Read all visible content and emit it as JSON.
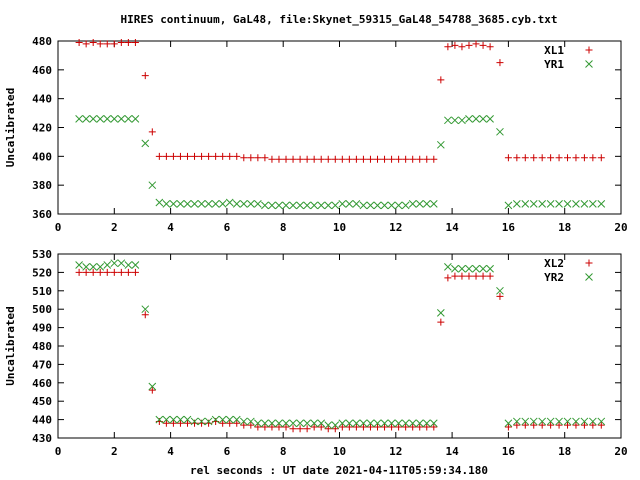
{
  "figure": {
    "title": "HIRES continuum, GaL48, file:Skynet_59315_GaL48_54788_3685.cyb.txt",
    "xlabel": "rel seconds : UT date 2021-04-11T05:59:34.180"
  },
  "chart_data": [
    {
      "type": "scatter",
      "title": "",
      "xlabel": "",
      "ylabel": "Uncalibrated",
      "xlim": [
        0,
        20
      ],
      "ylim": [
        360,
        480
      ],
      "xticks": [
        0,
        2,
        4,
        6,
        8,
        10,
        12,
        14,
        16,
        18,
        20
      ],
      "yticks": [
        360,
        380,
        400,
        420,
        440,
        460,
        480
      ],
      "grid": false,
      "legend_position": "top-right",
      "series": [
        {
          "name": "XL1",
          "marker": "plus",
          "color": "#cc0000",
          "x": [
            0.75,
            1.0,
            1.25,
            1.5,
            1.75,
            2.0,
            2.25,
            2.5,
            2.75,
            3.1,
            3.35,
            3.6,
            3.85,
            4.1,
            4.35,
            4.6,
            4.85,
            5.1,
            5.35,
            5.6,
            5.85,
            6.1,
            6.35,
            6.6,
            6.85,
            7.1,
            7.35,
            7.6,
            7.85,
            8.1,
            8.35,
            8.6,
            8.85,
            9.1,
            9.35,
            9.6,
            9.85,
            10.1,
            10.35,
            10.6,
            10.85,
            11.1,
            11.35,
            11.6,
            11.85,
            12.1,
            12.35,
            12.6,
            12.85,
            13.1,
            13.35,
            13.6,
            13.85,
            14.1,
            14.35,
            14.6,
            14.85,
            15.1,
            15.35,
            15.7,
            16.0,
            16.3,
            16.6,
            16.9,
            17.2,
            17.5,
            17.8,
            18.1,
            18.4,
            18.7,
            19.0,
            19.3
          ],
          "y": [
            479,
            478,
            479,
            478,
            478,
            478,
            479,
            479,
            479,
            456,
            417,
            400,
            400,
            400,
            400,
            400,
            400,
            400,
            400,
            400,
            400,
            400,
            400,
            399,
            399,
            399,
            399,
            398,
            398,
            398,
            398,
            398,
            398,
            398,
            398,
            398,
            398,
            398,
            398,
            398,
            398,
            398,
            398,
            398,
            398,
            398,
            398,
            398,
            398,
            398,
            398,
            453,
            476,
            477,
            476,
            477,
            478,
            477,
            476,
            465,
            399,
            399,
            399,
            399,
            399,
            399,
            399,
            399,
            399,
            399,
            399,
            399
          ]
        },
        {
          "name": "YR1",
          "marker": "cross",
          "color": "#339933",
          "x": [
            0.75,
            1.0,
            1.25,
            1.5,
            1.75,
            2.0,
            2.25,
            2.5,
            2.75,
            3.1,
            3.35,
            3.6,
            3.85,
            4.1,
            4.35,
            4.6,
            4.85,
            5.1,
            5.35,
            5.6,
            5.85,
            6.1,
            6.35,
            6.6,
            6.85,
            7.1,
            7.35,
            7.6,
            7.85,
            8.1,
            8.35,
            8.6,
            8.85,
            9.1,
            9.35,
            9.6,
            9.85,
            10.1,
            10.35,
            10.6,
            10.85,
            11.1,
            11.35,
            11.6,
            11.85,
            12.1,
            12.35,
            12.6,
            12.85,
            13.1,
            13.35,
            13.6,
            13.85,
            14.1,
            14.35,
            14.6,
            14.85,
            15.1,
            15.35,
            15.7,
            16.0,
            16.3,
            16.6,
            16.9,
            17.2,
            17.5,
            17.8,
            18.1,
            18.4,
            18.7,
            19.0,
            19.3
          ],
          "y": [
            426,
            426,
            426,
            426,
            426,
            426,
            426,
            426,
            426,
            409,
            380,
            368,
            367,
            367,
            367,
            367,
            367,
            367,
            367,
            367,
            367,
            368,
            367,
            367,
            367,
            367,
            366,
            366,
            366,
            366,
            366,
            366,
            366,
            366,
            366,
            366,
            366,
            367,
            367,
            367,
            366,
            366,
            366,
            366,
            366,
            366,
            366,
            367,
            367,
            367,
            367,
            408,
            425,
            425,
            425,
            426,
            426,
            426,
            426,
            417,
            366,
            367,
            367,
            367,
            367,
            367,
            367,
            367,
            367,
            367,
            367,
            367
          ]
        }
      ]
    },
    {
      "type": "scatter",
      "title": "",
      "xlabel": "rel seconds : UT date 2021-04-11T05:59:34.180",
      "ylabel": "Uncalibrated",
      "xlim": [
        0,
        20
      ],
      "ylim": [
        430,
        530
      ],
      "xticks": [
        0,
        2,
        4,
        6,
        8,
        10,
        12,
        14,
        16,
        18,
        20
      ],
      "yticks": [
        430,
        440,
        450,
        460,
        470,
        480,
        490,
        500,
        510,
        520,
        530
      ],
      "grid": false,
      "legend_position": "top-right",
      "series": [
        {
          "name": "XL2",
          "marker": "plus",
          "color": "#cc0000",
          "x": [
            0.75,
            1.0,
            1.25,
            1.5,
            1.75,
            2.0,
            2.25,
            2.5,
            2.75,
            3.1,
            3.35,
            3.6,
            3.85,
            4.1,
            4.35,
            4.6,
            4.85,
            5.1,
            5.35,
            5.6,
            5.85,
            6.1,
            6.35,
            6.6,
            6.85,
            7.1,
            7.35,
            7.6,
            7.85,
            8.1,
            8.35,
            8.6,
            8.85,
            9.1,
            9.35,
            9.6,
            9.85,
            10.1,
            10.35,
            10.6,
            10.85,
            11.1,
            11.35,
            11.6,
            11.85,
            12.1,
            12.35,
            12.6,
            12.85,
            13.1,
            13.35,
            13.6,
            13.85,
            14.1,
            14.35,
            14.6,
            14.85,
            15.1,
            15.35,
            15.7,
            16.0,
            16.3,
            16.6,
            16.9,
            17.2,
            17.5,
            17.8,
            18.1,
            18.4,
            18.7,
            19.0,
            19.3
          ],
          "y": [
            520,
            520,
            520,
            520,
            520,
            520,
            520,
            520,
            520,
            497,
            456,
            439,
            438,
            438,
            438,
            438,
            438,
            438,
            438,
            439,
            438,
            438,
            438,
            437,
            437,
            436,
            436,
            436,
            436,
            436,
            435,
            435,
            435,
            436,
            436,
            435,
            435,
            436,
            436,
            436,
            436,
            436,
            436,
            436,
            436,
            436,
            436,
            436,
            436,
            436,
            436,
            493,
            517,
            518,
            518,
            518,
            518,
            518,
            518,
            507,
            436,
            437,
            437,
            437,
            437,
            437,
            437,
            437,
            437,
            437,
            437,
            437
          ]
        },
        {
          "name": "YR2",
          "marker": "cross",
          "color": "#339933",
          "x": [
            0.75,
            1.0,
            1.25,
            1.5,
            1.75,
            2.0,
            2.25,
            2.5,
            2.75,
            3.1,
            3.35,
            3.6,
            3.85,
            4.1,
            4.35,
            4.6,
            4.85,
            5.1,
            5.35,
            5.6,
            5.85,
            6.1,
            6.35,
            6.6,
            6.85,
            7.1,
            7.35,
            7.6,
            7.85,
            8.1,
            8.35,
            8.6,
            8.85,
            9.1,
            9.35,
            9.6,
            9.85,
            10.1,
            10.35,
            10.6,
            10.85,
            11.1,
            11.35,
            11.6,
            11.85,
            12.1,
            12.35,
            12.6,
            12.85,
            13.1,
            13.35,
            13.6,
            13.85,
            14.1,
            14.35,
            14.6,
            14.85,
            15.1,
            15.35,
            15.7,
            16.0,
            16.3,
            16.6,
            16.9,
            17.2,
            17.5,
            17.8,
            18.1,
            18.4,
            18.7,
            19.0,
            19.3
          ],
          "y": [
            524,
            523,
            523,
            523,
            524,
            525,
            525,
            524,
            524,
            500,
            458,
            440,
            440,
            440,
            440,
            440,
            439,
            439,
            439,
            440,
            440,
            440,
            440,
            439,
            439,
            438,
            438,
            438,
            438,
            438,
            438,
            438,
            438,
            438,
            438,
            437,
            437,
            438,
            438,
            438,
            438,
            438,
            438,
            438,
            438,
            438,
            438,
            438,
            438,
            438,
            438,
            498,
            523,
            522,
            522,
            522,
            522,
            522,
            522,
            510,
            438,
            439,
            439,
            439,
            439,
            439,
            439,
            439,
            439,
            439,
            439,
            439
          ]
        }
      ]
    }
  ]
}
